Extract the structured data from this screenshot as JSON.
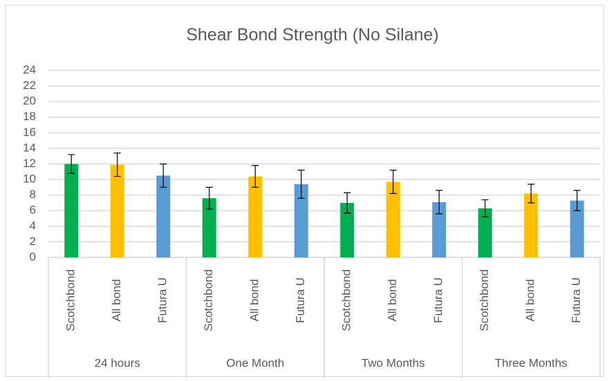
{
  "chart_data": {
    "type": "bar",
    "title": "Shear Bond Strength (No Silane)",
    "groups": [
      "24 hours",
      "One Month",
      "Two Months",
      "Three Months"
    ],
    "categories": [
      "Scotchbond",
      "All bond",
      "Futura U",
      "Scotchbond",
      "All bond",
      "Futura U",
      "Scotchbond",
      "All bond",
      "Futura U",
      "Scotchbond",
      "All bond",
      "Futura U"
    ],
    "values": [
      12.0,
      11.9,
      10.5,
      7.6,
      10.4,
      9.4,
      7.0,
      9.7,
      7.1,
      6.3,
      8.2,
      7.3
    ],
    "errors": [
      1.2,
      1.5,
      1.5,
      1.4,
      1.4,
      1.8,
      1.3,
      1.5,
      1.5,
      1.1,
      1.2,
      1.3
    ],
    "colors": [
      "#00b050",
      "#ffc000",
      "#5b9bd5",
      "#00b050",
      "#ffc000",
      "#5b9bd5",
      "#00b050",
      "#ffc000",
      "#5b9bd5",
      "#00b050",
      "#ffc000",
      "#5b9bd5"
    ],
    "ylim": [
      0,
      24
    ],
    "yticks": [
      0,
      2,
      4,
      6,
      8,
      10,
      12,
      14,
      16,
      18,
      20,
      22,
      24
    ],
    "grid": true
  }
}
